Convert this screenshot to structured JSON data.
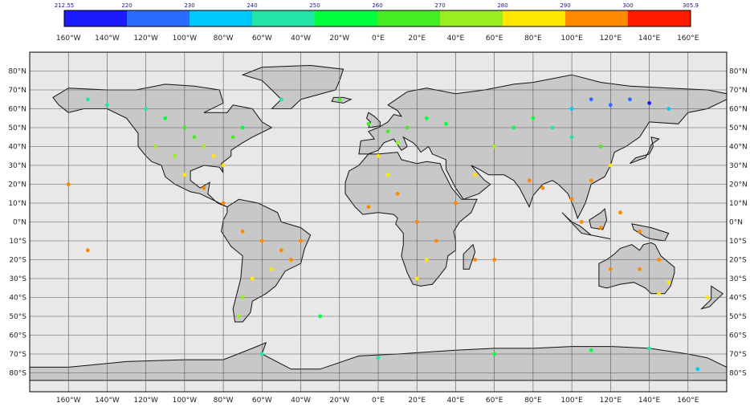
{
  "colorbar": {
    "labels": [
      "212.55",
      "220",
      "230",
      "240",
      "250",
      "260",
      "270",
      "280",
      "290",
      "300",
      "305.9"
    ],
    "colors": [
      "#1a1aff",
      "#2a6cff",
      "#00c8ff",
      "#22e6a8",
      "#00ff3c",
      "#44ee22",
      "#99ee22",
      "#ffe800",
      "#ff8800",
      "#ff1a00"
    ]
  },
  "map": {
    "ocean_color": "#e8e8e8",
    "land_color": "#c8c8c8",
    "lon_labels": [
      "160°W",
      "140°W",
      "120°W",
      "100°W",
      "80°W",
      "60°W",
      "40°W",
      "20°W",
      "0°E",
      "20°E",
      "40°E",
      "60°E",
      "80°E",
      "100°E",
      "120°E",
      "140°E",
      "160°E"
    ],
    "lat_labels": [
      "80°N",
      "70°N",
      "60°N",
      "50°N",
      "40°N",
      "30°N",
      "20°N",
      "10°N",
      "0°N",
      "10°S",
      "20°S",
      "30°S",
      "40°S",
      "50°S",
      "60°S",
      "70°S",
      "80°S"
    ]
  },
  "stations": [
    {
      "lon": -150,
      "lat": 65,
      "v": 245
    },
    {
      "lon": -140,
      "lat": 62,
      "v": 248
    },
    {
      "lon": -120,
      "lat": 60,
      "v": 250
    },
    {
      "lon": -110,
      "lat": 55,
      "v": 255
    },
    {
      "lon": -100,
      "lat": 50,
      "v": 262
    },
    {
      "lon": -95,
      "lat": 45,
      "v": 268
    },
    {
      "lon": -90,
      "lat": 40,
      "v": 275
    },
    {
      "lon": -85,
      "lat": 35,
      "v": 282
    },
    {
      "lon": -80,
      "lat": 30,
      "v": 288
    },
    {
      "lon": -105,
      "lat": 35,
      "v": 278
    },
    {
      "lon": -115,
      "lat": 40,
      "v": 272
    },
    {
      "lon": -75,
      "lat": 45,
      "v": 262
    },
    {
      "lon": -70,
      "lat": 50,
      "v": 255
    },
    {
      "lon": -100,
      "lat": 25,
      "v": 290
    },
    {
      "lon": -90,
      "lat": 18,
      "v": 296
    },
    {
      "lon": -80,
      "lat": 10,
      "v": 297
    },
    {
      "lon": -70,
      "lat": -5,
      "v": 299
    },
    {
      "lon": -60,
      "lat": -10,
      "v": 298
    },
    {
      "lon": -50,
      "lat": -15,
      "v": 296
    },
    {
      "lon": -45,
      "lat": -20,
      "v": 295
    },
    {
      "lon": -55,
      "lat": -25,
      "v": 288
    },
    {
      "lon": -65,
      "lat": -30,
      "v": 286
    },
    {
      "lon": -70,
      "lat": -40,
      "v": 280
    },
    {
      "lon": -72,
      "lat": -50,
      "v": 275
    },
    {
      "lon": -5,
      "lat": 52,
      "v": 262
    },
    {
      "lon": 5,
      "lat": 48,
      "v": 265
    },
    {
      "lon": 15,
      "lat": 50,
      "v": 262
    },
    {
      "lon": 25,
      "lat": 55,
      "v": 258
    },
    {
      "lon": 35,
      "lat": 52,
      "v": 260
    },
    {
      "lon": 10,
      "lat": 42,
      "v": 278
    },
    {
      "lon": 0,
      "lat": 35,
      "v": 285
    },
    {
      "lon": 5,
      "lat": 25,
      "v": 290
    },
    {
      "lon": 10,
      "lat": 15,
      "v": 296
    },
    {
      "lon": -5,
      "lat": 8,
      "v": 298
    },
    {
      "lon": 20,
      "lat": 0,
      "v": 296
    },
    {
      "lon": 30,
      "lat": -10,
      "v": 294
    },
    {
      "lon": 25,
      "lat": -20,
      "v": 290
    },
    {
      "lon": 20,
      "lat": -30,
      "v": 286
    },
    {
      "lon": 40,
      "lat": 10,
      "v": 298
    },
    {
      "lon": 50,
      "lat": 25,
      "v": 290
    },
    {
      "lon": 60,
      "lat": 40,
      "v": 272
    },
    {
      "lon": 70,
      "lat": 50,
      "v": 260
    },
    {
      "lon": 80,
      "lat": 55,
      "v": 255
    },
    {
      "lon": 90,
      "lat": 50,
      "v": 250
    },
    {
      "lon": 100,
      "lat": 60,
      "v": 240
    },
    {
      "lon": 110,
      "lat": 65,
      "v": 230
    },
    {
      "lon": 120,
      "lat": 62,
      "v": 225
    },
    {
      "lon": 130,
      "lat": 65,
      "v": 222
    },
    {
      "lon": 140,
      "lat": 63,
      "v": 220
    },
    {
      "lon": 150,
      "lat": 60,
      "v": 238
    },
    {
      "lon": 100,
      "lat": 45,
      "v": 248
    },
    {
      "lon": 115,
      "lat": 40,
      "v": 262
    },
    {
      "lon": 120,
      "lat": 30,
      "v": 288
    },
    {
      "lon": 110,
      "lat": 22,
      "v": 295
    },
    {
      "lon": 78,
      "lat": 22,
      "v": 298
    },
    {
      "lon": 85,
      "lat": 18,
      "v": 299
    },
    {
      "lon": 100,
      "lat": 12,
      "v": 299
    },
    {
      "lon": 105,
      "lat": 0,
      "v": 299
    },
    {
      "lon": 115,
      "lat": -3,
      "v": 299
    },
    {
      "lon": 125,
      "lat": 5,
      "v": 299
    },
    {
      "lon": 135,
      "lat": -5,
      "v": 298
    },
    {
      "lon": 120,
      "lat": -25,
      "v": 292
    },
    {
      "lon": 135,
      "lat": -25,
      "v": 294
    },
    {
      "lon": 145,
      "lat": -20,
      "v": 296
    },
    {
      "lon": 150,
      "lat": -32,
      "v": 288
    },
    {
      "lon": 145,
      "lat": -38,
      "v": 285
    },
    {
      "lon": 170,
      "lat": -40,
      "v": 284
    },
    {
      "lon": -160,
      "lat": 20,
      "v": 297
    },
    {
      "lon": -150,
      "lat": -15,
      "v": 298
    },
    {
      "lon": -30,
      "lat": -50,
      "v": 260
    },
    {
      "lon": -60,
      "lat": -70,
      "v": 250
    },
    {
      "lon": 0,
      "lat": -72,
      "v": 250
    },
    {
      "lon": 60,
      "lat": -70,
      "v": 255
    },
    {
      "lon": 110,
      "lat": -68,
      "v": 252
    },
    {
      "lon": 140,
      "lat": -67,
      "v": 250
    },
    {
      "lon": 165,
      "lat": -78,
      "v": 240
    },
    {
      "lon": -20,
      "lat": 65,
      "v": 262
    },
    {
      "lon": -50,
      "lat": 65,
      "v": 250
    },
    {
      "lon": 50,
      "lat": -20,
      "v": 297
    },
    {
      "lon": 60,
      "lat": -20,
      "v": 299
    },
    {
      "lon": -40,
      "lat": -10,
      "v": 298
    }
  ]
}
